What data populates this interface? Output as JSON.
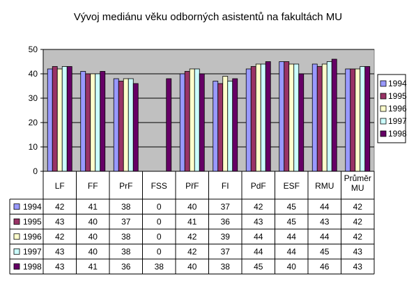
{
  "chart_data": {
    "type": "bar",
    "title": "Vývoj mediánu věku odborných asistentů na fakultách MU",
    "categories": [
      "LF",
      "FF",
      "PrF",
      "FSS",
      "PřF",
      "FI",
      "PdF",
      "ESF",
      "RMU",
      "Průměr MU"
    ],
    "series": [
      {
        "name": "1994",
        "color": "#9999ff",
        "values": [
          42,
          41,
          38,
          0,
          40,
          37,
          42,
          45,
          44,
          42
        ]
      },
      {
        "name": "1995",
        "color": "#993366",
        "values": [
          43,
          40,
          37,
          0,
          41,
          36,
          43,
          45,
          43,
          42
        ]
      },
      {
        "name": "1996",
        "color": "#ffffcc",
        "values": [
          42,
          40,
          38,
          0,
          42,
          39,
          44,
          44,
          44,
          42
        ]
      },
      {
        "name": "1997",
        "color": "#ccffff",
        "values": [
          43,
          40,
          38,
          0,
          42,
          37,
          44,
          44,
          45,
          43
        ]
      },
      {
        "name": "1998",
        "color": "#660066",
        "values": [
          43,
          41,
          36,
          38,
          40,
          38,
          45,
          40,
          46,
          43
        ]
      }
    ],
    "ylim": [
      0,
      50
    ],
    "yticks": [
      0,
      10,
      20,
      30,
      40,
      50
    ],
    "plot_background": "#c0c0c0",
    "grid": true,
    "legend_position": "right",
    "data_table": true
  }
}
